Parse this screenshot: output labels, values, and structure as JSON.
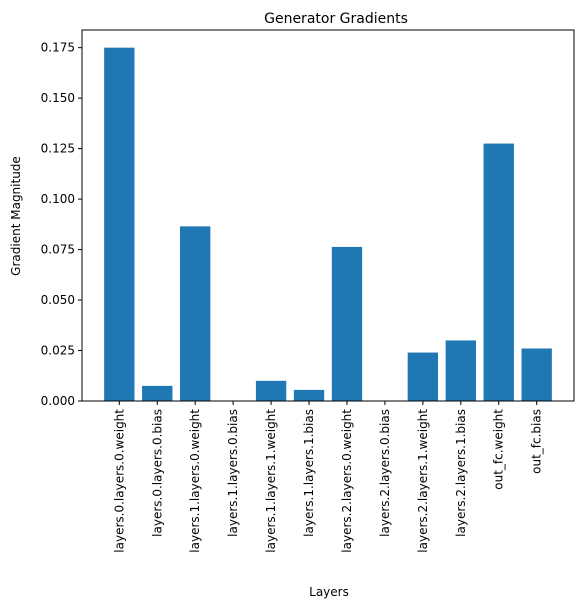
{
  "chart_data": {
    "type": "bar",
    "title": "Generator Gradients",
    "xlabel": "Layers",
    "ylabel": "Gradient Magnitude",
    "categories": [
      "layers.0.layers.0.weight",
      "layers.0.layers.0.bias",
      "layers.1.layers.0.weight",
      "layers.1.layers.0.bias",
      "layers.1.layers.1.weight",
      "layers.1.layers.1.bias",
      "layers.2.layers.0.weight",
      "layers.2.layers.0.bias",
      "layers.2.layers.1.weight",
      "layers.2.layers.1.bias",
      "out_fc.weight",
      "out_fc.bias"
    ],
    "values": [
      0.175,
      0.0075,
      0.0865,
      0.0,
      0.01,
      0.0055,
      0.0763,
      0.0,
      0.024,
      0.03,
      0.1275,
      0.026
    ],
    "ylim": [
      0,
      0.18375
    ],
    "yticks": [
      0.0,
      0.025,
      0.05,
      0.075,
      0.1,
      0.125,
      0.15,
      0.175
    ],
    "ytick_labels": [
      "0.000",
      "0.025",
      "0.050",
      "0.075",
      "0.100",
      "0.125",
      "0.150",
      "0.175"
    ],
    "grid": false,
    "bar_color": "#1f77b4"
  }
}
